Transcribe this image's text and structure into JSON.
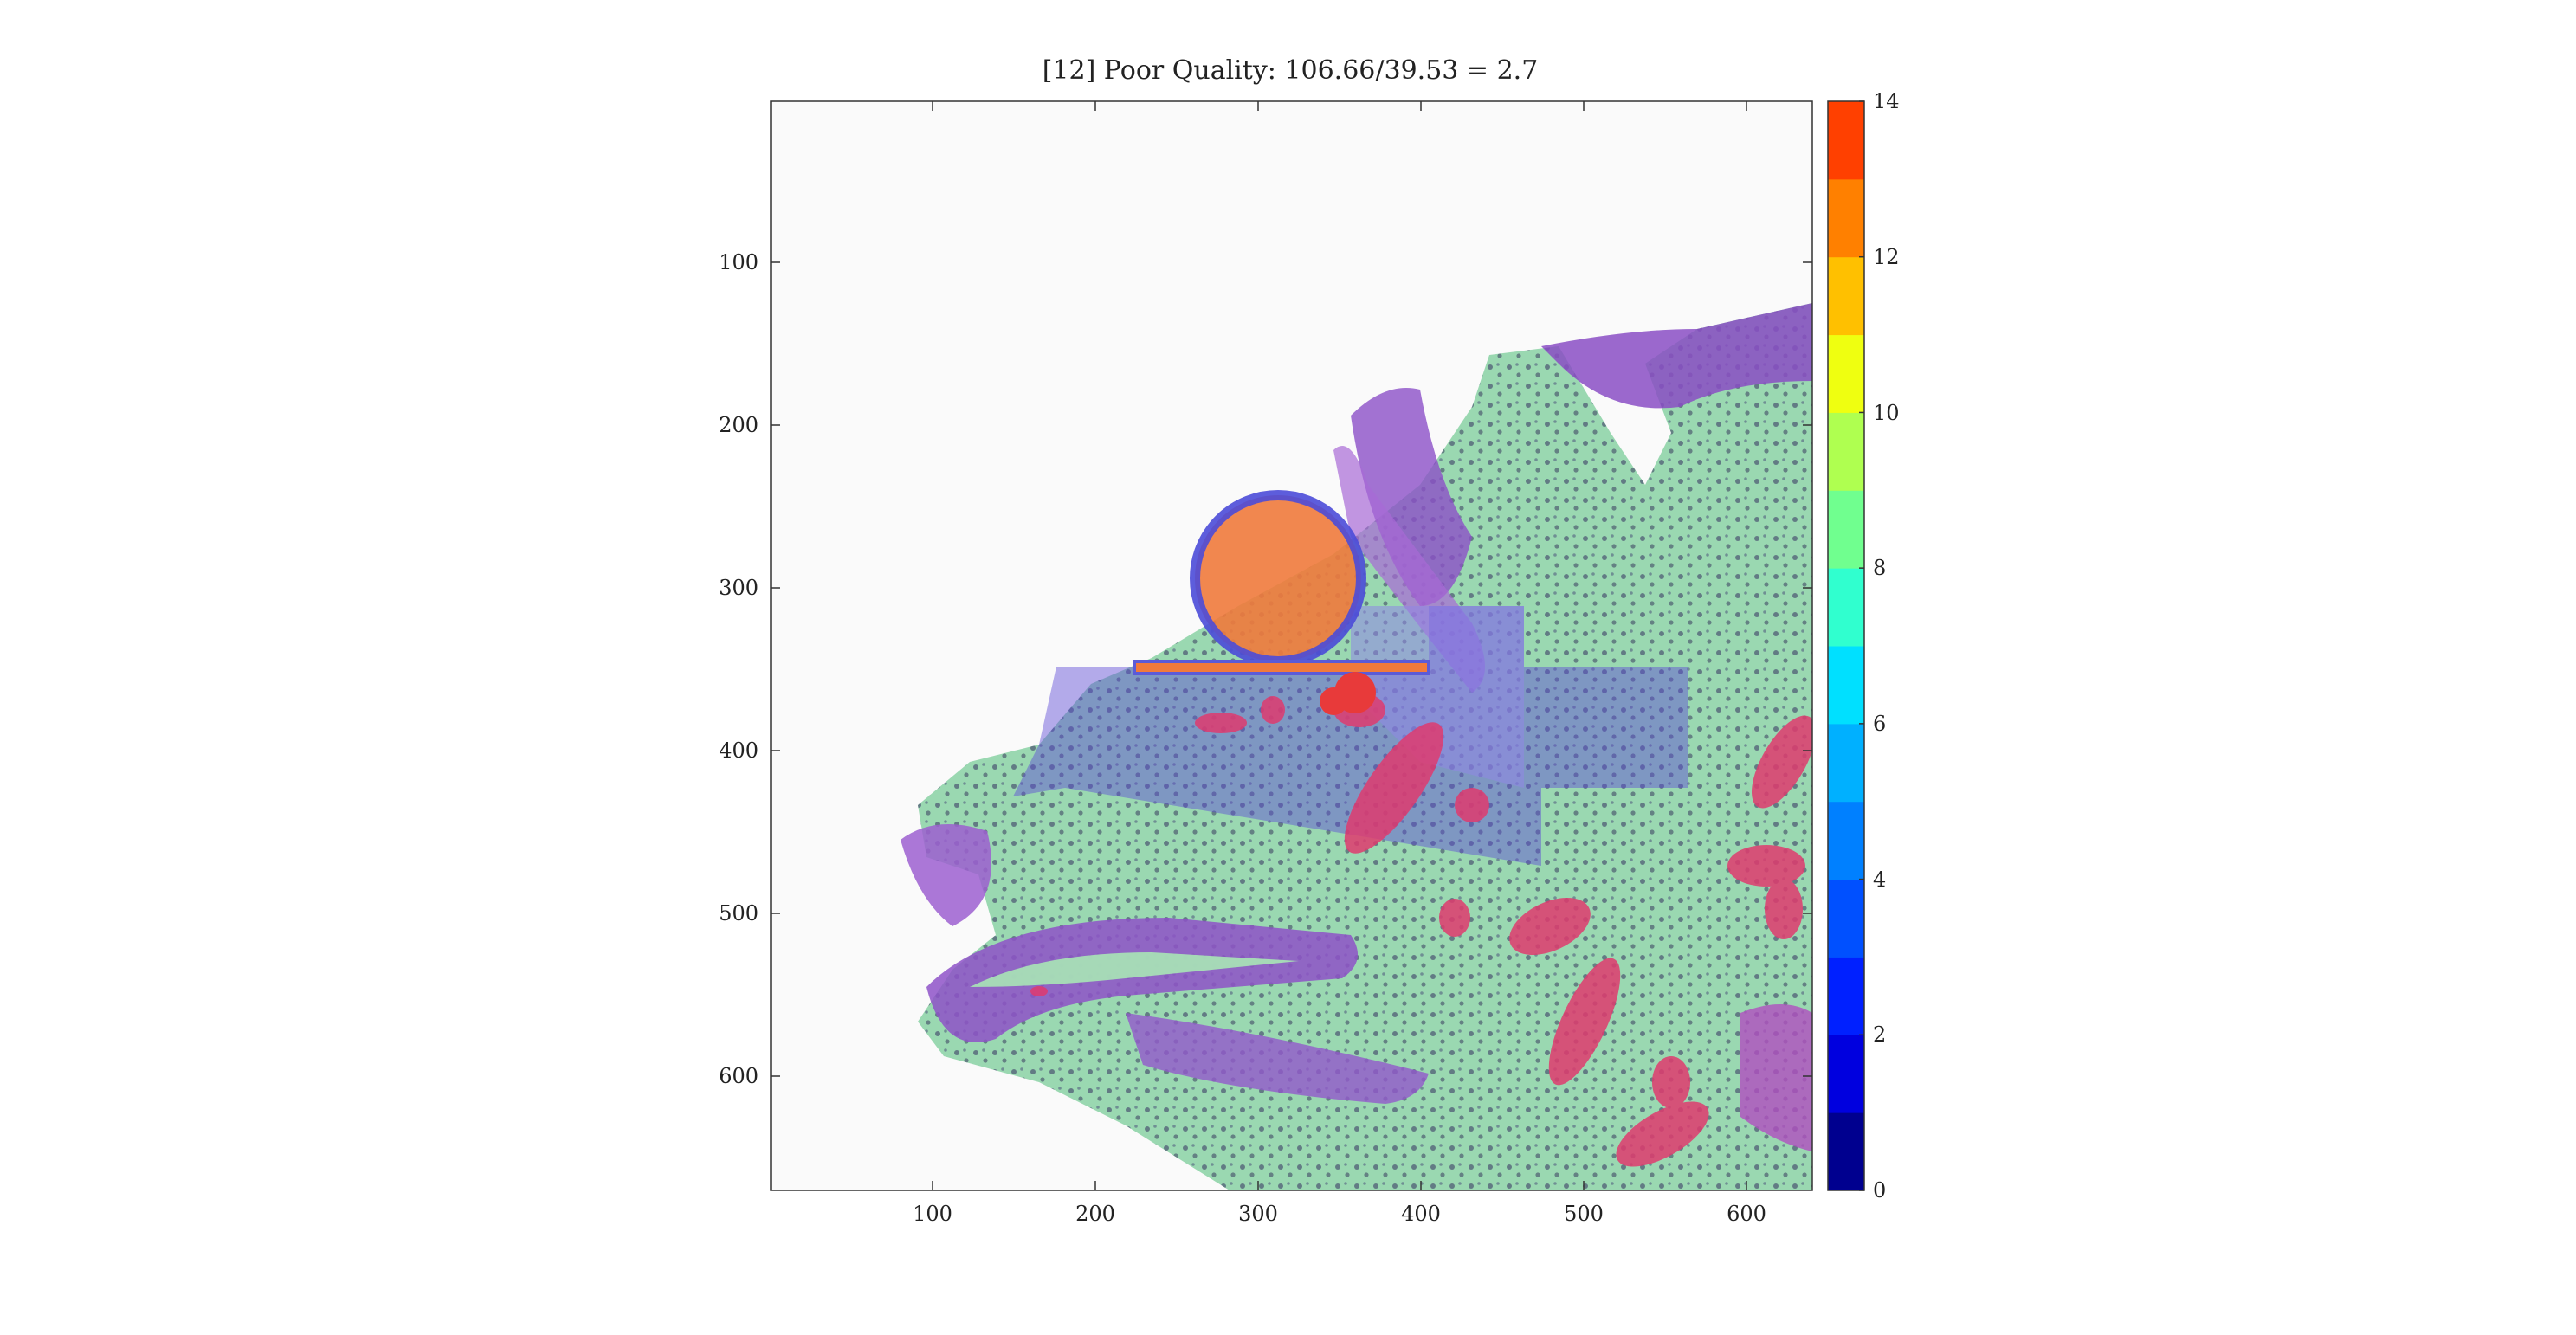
{
  "title": "[12] Poor Quality: 106.66/39.53 = 2.7",
  "chart_data": {
    "type": "heatmap",
    "title": "[12] Poor Quality: 106.66/39.53 = 2.7",
    "x_ticks": [
      "100",
      "200",
      "300",
      "400",
      "500",
      "600"
    ],
    "y_ticks": [
      "100",
      "200",
      "300",
      "400",
      "500",
      "600"
    ],
    "colorbar_ticks": [
      "0",
      "2",
      "4",
      "6",
      "8",
      "10",
      "12",
      "14"
    ],
    "colorbar_levels": 14,
    "xlim": [
      1,
      640
    ],
    "ylim": [
      1,
      670
    ],
    "colorbar_range": [
      0,
      14
    ],
    "colorbar_colors": [
      "#00008f",
      "#0000df",
      "#0020ff",
      "#0050ff",
      "#0080ff",
      "#00b0ff",
      "#00e0ff",
      "#30ffcf",
      "#70ff8f",
      "#afff50",
      "#efff10",
      "#ffc000",
      "#ff8000",
      "#ff4000",
      "#ff0000"
    ]
  }
}
